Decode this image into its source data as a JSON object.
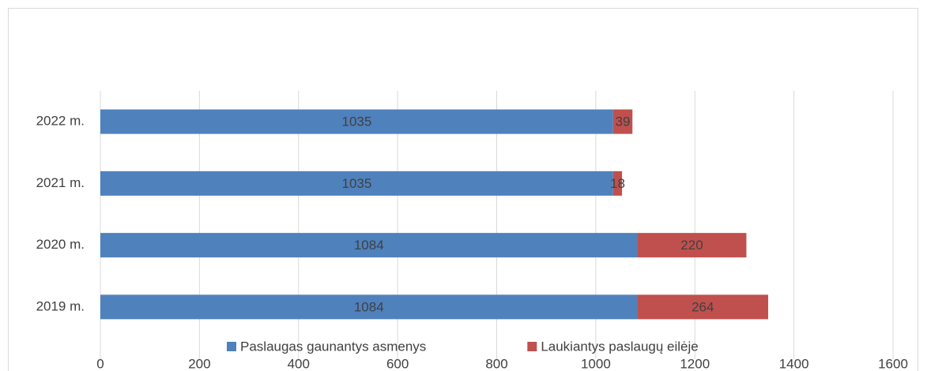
{
  "chart_data": {
    "type": "bar",
    "orientation": "horizontal",
    "stacked": true,
    "categories": [
      "2019 m.",
      "2020 m.",
      "2021 m.",
      "2022 m."
    ],
    "series": [
      {
        "name": "Paslaugas gaunantys asmenys",
        "color": "#4f81bd",
        "values": [
          1084,
          1084,
          1035,
          1035
        ]
      },
      {
        "name": "Laukiantys paslaugų eilėje",
        "color": "#c0504d",
        "values": [
          264,
          220,
          18,
          39
        ]
      }
    ],
    "xlim": [
      0,
      1600
    ],
    "xticks": [
      0,
      200,
      400,
      600,
      800,
      1000,
      1200,
      1400,
      1600
    ],
    "grid": true,
    "legend": "bottom"
  }
}
